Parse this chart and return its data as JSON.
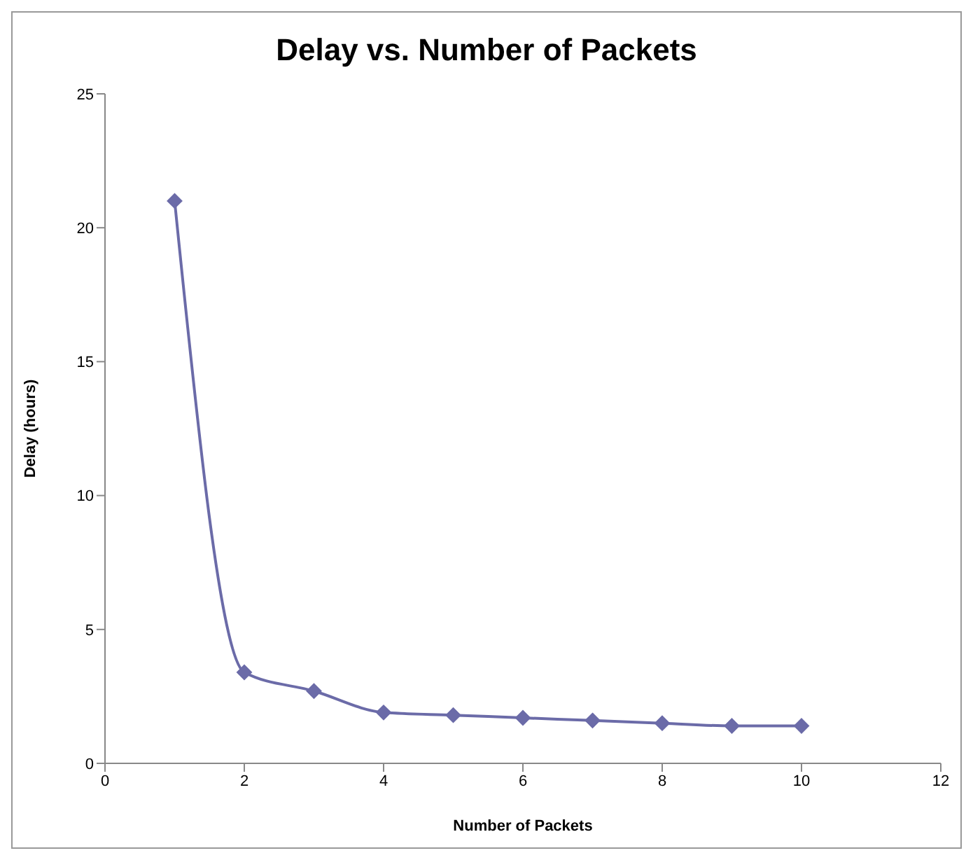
{
  "chart_data": {
    "type": "line",
    "title": "Delay vs. Number of Packets",
    "xlabel": "Number of Packets",
    "ylabel": "Delay (hours)",
    "x": [
      1,
      2,
      3,
      4,
      5,
      6,
      7,
      8,
      9,
      10
    ],
    "series": [
      {
        "color": "#6b6ba8",
        "values": [
          21.0,
          3.4,
          2.7,
          1.9,
          1.8,
          1.7,
          1.6,
          1.5,
          1.4,
          1.4
        ]
      }
    ],
    "xlim": [
      0,
      12
    ],
    "xticks": [
      0,
      2,
      4,
      6,
      8,
      10,
      12
    ],
    "ylim": [
      0,
      25
    ],
    "yticks": [
      0,
      5,
      10,
      15,
      20,
      25
    ],
    "marker": "diamond",
    "line_style": "solid",
    "grid": false,
    "legend": false
  }
}
